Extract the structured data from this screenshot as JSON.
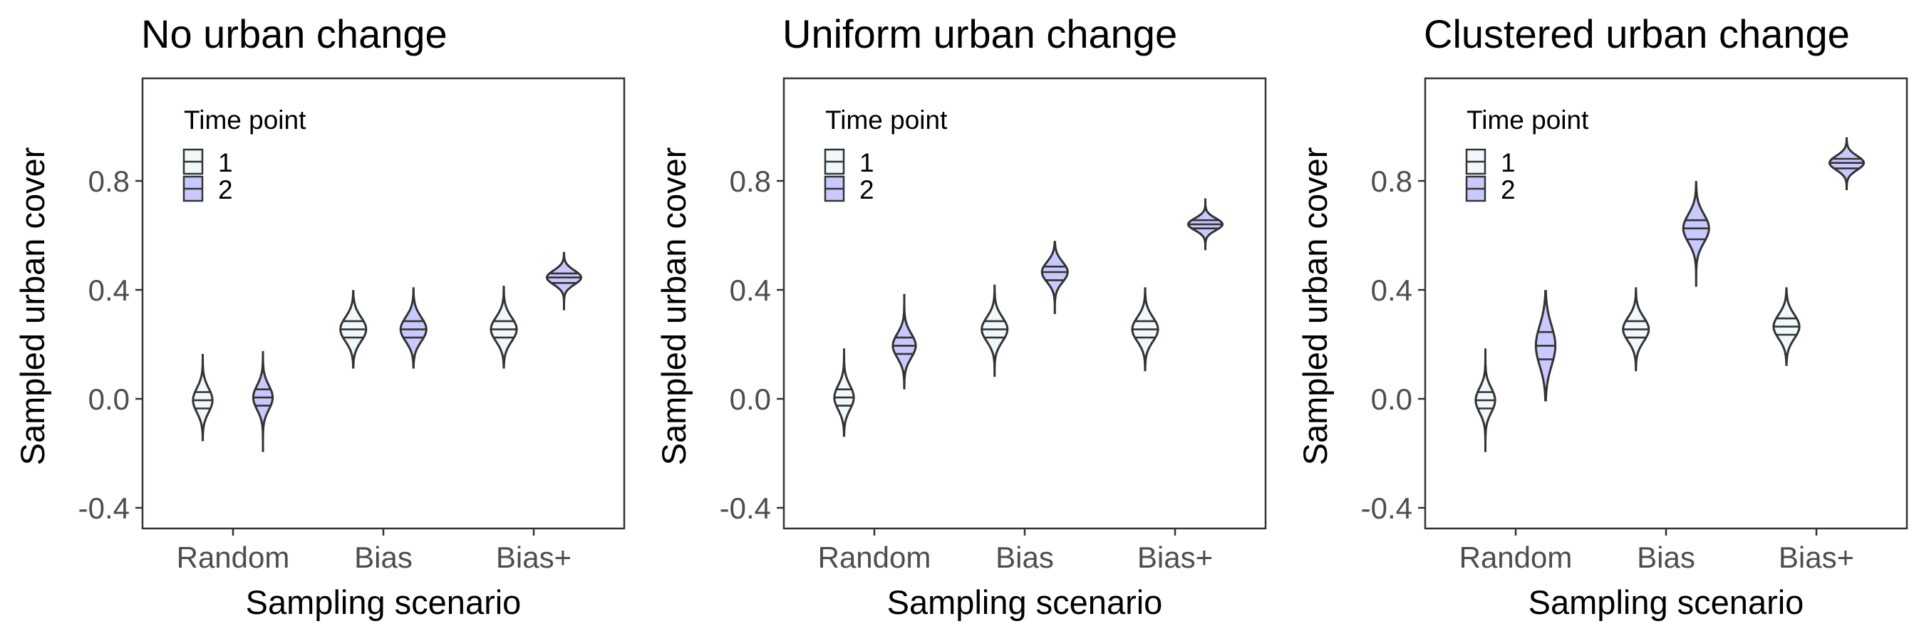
{
  "chart_data": [
    {
      "type": "violin",
      "title": "No urban change",
      "xlabel": "Sampling scenario",
      "ylabel": "Sampled urban cover",
      "categories": [
        "Random",
        "Bias",
        "Bias+"
      ],
      "yticks": [
        "-0.4",
        "0.0",
        "0.4",
        "0.8"
      ],
      "ylim": [
        -0.48,
        1.17
      ],
      "legend": {
        "title": "Time point",
        "entries": [
          "1",
          "2"
        ],
        "placement": "top-left"
      },
      "series": [
        {
          "name": "1",
          "color": "#f0f8fb",
          "values": [
            {
              "category": "Random",
              "min": -0.16,
              "q1": -0.04,
              "median": -0.01,
              "q3": 0.02,
              "max": 0.16,
              "maxWidth": 0.34
            },
            {
              "category": "Bias",
              "min": 0.11,
              "q1": 0.22,
              "median": 0.25,
              "q3": 0.28,
              "max": 0.39,
              "maxWidth": 0.45
            },
            {
              "category": "Bias+",
              "min": 0.11,
              "q1": 0.22,
              "median": 0.25,
              "q3": 0.28,
              "max": 0.41,
              "maxWidth": 0.45
            }
          ]
        },
        {
          "name": "2",
          "color": "#c9c9ff",
          "values": [
            {
              "category": "Random",
              "min": -0.2,
              "q1": -0.03,
              "median": 0.0,
              "q3": 0.03,
              "max": 0.17,
              "maxWidth": 0.34
            },
            {
              "category": "Bias",
              "min": 0.11,
              "q1": 0.22,
              "median": 0.25,
              "q3": 0.28,
              "max": 0.4,
              "maxWidth": 0.45
            },
            {
              "category": "Bias+",
              "min": 0.32,
              "q1": 0.42,
              "median": 0.44,
              "q3": 0.455,
              "max": 0.53,
              "maxWidth": 0.6
            }
          ]
        }
      ]
    },
    {
      "type": "violin",
      "title": "Uniform urban change",
      "xlabel": "Sampling scenario",
      "ylabel": "Sampled urban cover",
      "categories": [
        "Random",
        "Bias",
        "Bias+"
      ],
      "yticks": [
        "-0.4",
        "0.0",
        "0.4",
        "0.8"
      ],
      "ylim": [
        -0.48,
        1.17
      ],
      "legend": {
        "title": "Time point",
        "entries": [
          "1",
          "2"
        ],
        "placement": "top-left"
      },
      "series": [
        {
          "name": "1",
          "color": "#f0f8fb",
          "values": [
            {
              "category": "Random",
              "min": -0.14,
              "q1": -0.03,
              "median": 0.0,
              "q3": 0.03,
              "max": 0.18,
              "maxWidth": 0.34
            },
            {
              "category": "Bias",
              "min": 0.08,
              "q1": 0.22,
              "median": 0.25,
              "q3": 0.28,
              "max": 0.41,
              "maxWidth": 0.45
            },
            {
              "category": "Bias+",
              "min": 0.1,
              "q1": 0.22,
              "median": 0.25,
              "q3": 0.28,
              "max": 0.4,
              "maxWidth": 0.45
            }
          ]
        },
        {
          "name": "2",
          "color": "#c9c9ff",
          "values": [
            {
              "category": "Random",
              "min": 0.03,
              "q1": 0.16,
              "median": 0.19,
              "q3": 0.22,
              "max": 0.38,
              "maxWidth": 0.4
            },
            {
              "category": "Bias",
              "min": 0.31,
              "q1": 0.43,
              "median": 0.46,
              "q3": 0.48,
              "max": 0.57,
              "maxWidth": 0.45
            },
            {
              "category": "Bias+",
              "min": 0.54,
              "q1": 0.62,
              "median": 0.635,
              "q3": 0.65,
              "max": 0.73,
              "maxWidth": 0.6
            }
          ]
        }
      ]
    },
    {
      "type": "violin",
      "title": "Clustered urban change",
      "xlabel": "Sampling scenario",
      "ylabel": "Sampled urban cover",
      "categories": [
        "Random",
        "Bias",
        "Bias+"
      ],
      "yticks": [
        "-0.4",
        "0.0",
        "0.4",
        "0.8"
      ],
      "ylim": [
        -0.48,
        1.17
      ],
      "legend": {
        "title": "Time point",
        "entries": [
          "1",
          "2"
        ],
        "placement": "top-left"
      },
      "series": [
        {
          "name": "1",
          "color": "#f0f8fb",
          "values": [
            {
              "category": "Random",
              "min": -0.2,
              "q1": -0.04,
              "median": -0.01,
              "q3": 0.02,
              "max": 0.18,
              "maxWidth": 0.34
            },
            {
              "category": "Bias",
              "min": 0.1,
              "q1": 0.22,
              "median": 0.25,
              "q3": 0.28,
              "max": 0.4,
              "maxWidth": 0.45
            },
            {
              "category": "Bias+",
              "min": 0.12,
              "q1": 0.23,
              "median": 0.26,
              "q3": 0.29,
              "max": 0.4,
              "maxWidth": 0.45
            }
          ]
        },
        {
          "name": "2",
          "color": "#c9c9ff",
          "values": [
            {
              "category": "Random",
              "min": -0.01,
              "q1": 0.14,
              "median": 0.19,
              "q3": 0.24,
              "max": 0.39,
              "maxWidth": 0.34
            },
            {
              "category": "Bias",
              "min": 0.41,
              "q1": 0.58,
              "median": 0.62,
              "q3": 0.65,
              "max": 0.79,
              "maxWidth": 0.45
            },
            {
              "category": "Bias+",
              "min": 0.76,
              "q1": 0.84,
              "median": 0.86,
              "q3": 0.875,
              "max": 0.95,
              "maxWidth": 0.6
            }
          ]
        }
      ]
    }
  ]
}
